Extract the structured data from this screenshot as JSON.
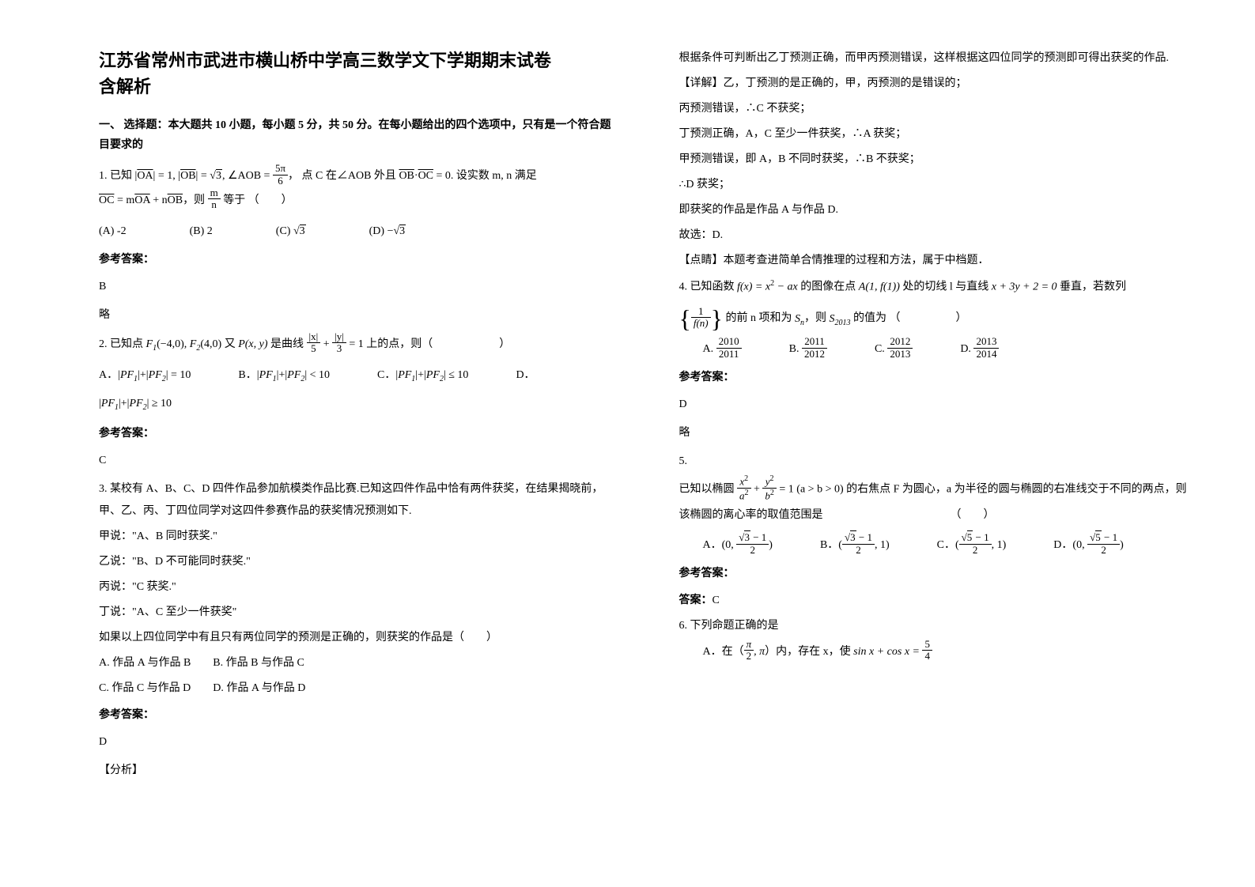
{
  "title_line1": "江苏省常州市武进市横山桥中学高三数学文下学期期末试卷",
  "title_line2": "含解析",
  "section1": "一、 选择题：本大题共 10 小题，每小题 5 分，共 50 分。在每小题给出的四个选项中，只有是一个符合题目要求的",
  "q1": {
    "pre": "1. 已知",
    "oa": "OA",
    "eq1": " = 1, ",
    "ob": "OB",
    "eq2": " = ",
    "sqrt3": "3",
    "angle": ", ∠AOB = ",
    "fn": "5π",
    "fd": "6",
    "comma": "，",
    "mid": "点 C 在∠AOB 外且",
    "obdot": "OB",
    "oc": "OC",
    "eq0": " = 0.",
    "tail": " 设实数 m, n 满足",
    "line2a": "OC",
    "line2b": " = m",
    "line2c": "OA",
    "line2d": " + n",
    "line2e": "OB",
    "line2f": "，则 ",
    "mn_n": "m",
    "mn_d": "n",
    "line2g": " 等于 （　　）",
    "A": "(A) -2",
    "B": "(B) 2",
    "C": "(C) ",
    "C_sqrt": "3",
    "D": "(D) −",
    "D_sqrt": "3"
  },
  "ans_label": "参考答案：",
  "q1_ans": "B",
  "q1_brief": "略",
  "q2": {
    "pre": "2. 已知点",
    "f1": "F",
    "f1sub": "1",
    "f1c": "(−4,0), ",
    "f2": "F",
    "f2sub": "2",
    "f2c": "(4,0) ",
    "you": "又",
    "p": " P(x, y) ",
    "is": "是曲线 ",
    "xn": "|x|",
    "xd": "5",
    "plus": " + ",
    "yn": "|y|",
    "yd": "3",
    "eq1": " = 1",
    "tail": "  上的点，则（　　　　　　）",
    "A": "A．",
    "Aexp": " = 10",
    "B": "B．",
    "Bexp": " < 10",
    "C": "C．",
    "Cexp": " ≤ 10",
    "D": "D．",
    "Dexp": " ≥ 10",
    "pf1": "PF",
    "pf1s": "1",
    "pf2": "PF",
    "pf2s": "2"
  },
  "q2_ans": "C",
  "q3": {
    "txt1": "3. 某校有 A、B、C、D 四件作品参加航模类作品比赛.已知这四件作品中恰有两件获奖，在结果揭晓前，甲、乙、丙、丁四位同学对这四件参赛作品的获奖情况预测如下.",
    "jia": "甲说：\"A、B 同时获奖.\"",
    "yi": "乙说：\"B、D 不可能同时获奖.\"",
    "bing": "丙说：\"C 获奖.\"",
    "ding": "丁说：\"A、C 至少一件获奖\"",
    "cond": "如果以上四位同学中有且只有两位同学的预测是正确的，则获奖的作品是（　　）",
    "A": "A. 作品 A 与作品 B",
    "B": "B. 作品 B 与作品 C",
    "C": "C. 作品 C 与作品 D",
    "D": "D. 作品 A 与作品 D"
  },
  "q3_ans": "D",
  "analysis_label": "【分析】",
  "r": {
    "p1": "根据条件可判断出乙丁预测正确，而甲丙预测错误，这样根据这四位同学的预测即可得出获奖的作品.",
    "p2_label": "【详解】",
    "p2": "乙，丁预测的是正确的，甲，丙预测的是错误的；",
    "p3": "丙预测错误，∴C 不获奖；",
    "p4": "丁预测正确，A，C 至少一件获奖，∴A 获奖；",
    "p5": "甲预测错误，即 A，B 不同时获奖，∴B 不获奖；",
    "p6": "∴D 获奖；",
    "p7": "即获奖的作品是作品 A 与作品 D.",
    "p8": "故选：D.",
    "p9_label": "【点睛】",
    "p9": "本题考查进简单合情推理的过程和方法，属于中档题．"
  },
  "q4": {
    "pre": "4. 已知函数",
    "fx": " f(x) = x",
    "sq": "2",
    "minus": " − ax ",
    "mid": "的图像在点",
    "a1": " A(1, f(1)) ",
    "mid2": "处的切线 l 与直线",
    "line": " x + 3y + 2 = 0 ",
    "tail": "垂直，若数列",
    "bfn": "1",
    "bfd": "f(n)",
    "s1": " 的前 n 项和为",
    "sn": " S",
    "sns": "n",
    "s2": "，则",
    "s2013": " S",
    "s2013s": "2013",
    "s3": " 的值为 （　　　　　）",
    "An": "2010",
    "Ad": "2011",
    "Bn": "2011",
    "Bd": "2012",
    "Cn": "2012",
    "Cd": "2013",
    "Dn": "2013",
    "Dd": "2014",
    "Al": "A. ",
    "Bl": "B. ",
    "Cl": "C. ",
    "Dl": "D. "
  },
  "q4_ans": "D",
  "q4_brief": "略",
  "q5": {
    "num": "5.",
    "pre": "已知以椭圆",
    "xn": "x",
    "xs": "2",
    "xd": "a",
    "xds": "2",
    "plus": " + ",
    "yn": "y",
    "ys": "2",
    "yd": "b",
    "yds": "2",
    "eq": " = 1 (a > b > 0)",
    "mid": " 的右焦点 F 为圆心，a 为半径的圆与椭圆的右准线交于不同的两点，则该椭圆的离心率的取值范围是　　　　　　　　　　　　（　　）",
    "A": "A．",
    "B": "B．",
    "C": "C．",
    "D": "D．",
    "zero": "(0, ",
    "one": ", 1)",
    "s3_1n": "3",
    "s3_1": " − 1",
    "d2": "2",
    "s5_1n": "5",
    "s5_1": " − 1",
    "close": ")",
    "open": "("
  },
  "answer_bold": "答案：",
  "q5_ans": "C",
  "q6": {
    "pre": "6. 下列命题正确的是",
    "A": "A．在（",
    "pin": "π",
    "pid": "2",
    "A2": ", π",
    "A3": "）内，存在 x，使 ",
    "sincos": "sin x + cos x = ",
    "n5": "5",
    "d4": "4"
  }
}
